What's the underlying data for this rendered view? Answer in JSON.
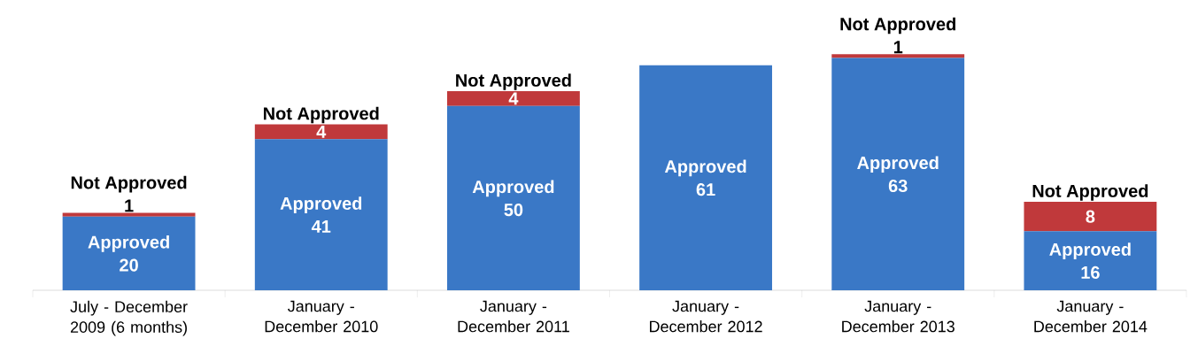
{
  "chart_data": {
    "type": "bar",
    "stacked": true,
    "data_labels": true,
    "categories": [
      "July - December 2009 (6 months)",
      "January - December 2010",
      "January - December 2011",
      "January - December 2012",
      "January - December 2013",
      "January - December 2014"
    ],
    "series": [
      {
        "name": "Approved",
        "color": "#3a78c6",
        "values": [
          20,
          41,
          50,
          61,
          63,
          16
        ]
      },
      {
        "name": "Not Approved",
        "color": "#c0393b",
        "values": [
          1,
          4,
          4,
          null,
          1,
          8
        ]
      }
    ]
  }
}
